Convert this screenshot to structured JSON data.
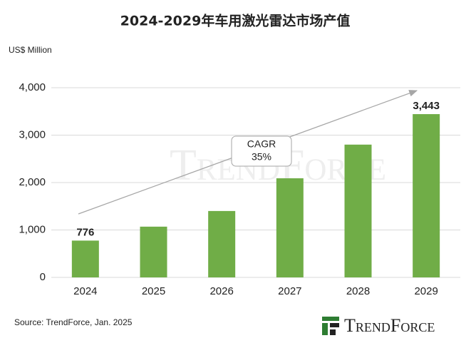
{
  "chart_data": {
    "type": "bar",
    "title": "2024-2029年车用激光雷达市场产值",
    "y_axis_label": "US$ Million",
    "categories": [
      "2024",
      "2025",
      "2026",
      "2027",
      "2028",
      "2029"
    ],
    "values": [
      776,
      1070,
      1400,
      2090,
      2800,
      3443
    ],
    "value_labels": [
      "776",
      null,
      null,
      null,
      null,
      "3,443"
    ],
    "color": "#70ad47",
    "ylim": [
      0,
      4000
    ],
    "yticks": [
      0,
      {
        "value": 1000,
        "label": "1,000"
      },
      {
        "value": 2000,
        "label": "2,000"
      },
      {
        "value": 3000,
        "label": "3,000"
      },
      {
        "value": 4000,
        "label": "4,000"
      }
    ],
    "grid": true,
    "annotation": {
      "line1": "CAGR",
      "line2": "35%"
    },
    "source": "Source: TrendForce, Jan. 2025",
    "logo": "TrendForce"
  }
}
